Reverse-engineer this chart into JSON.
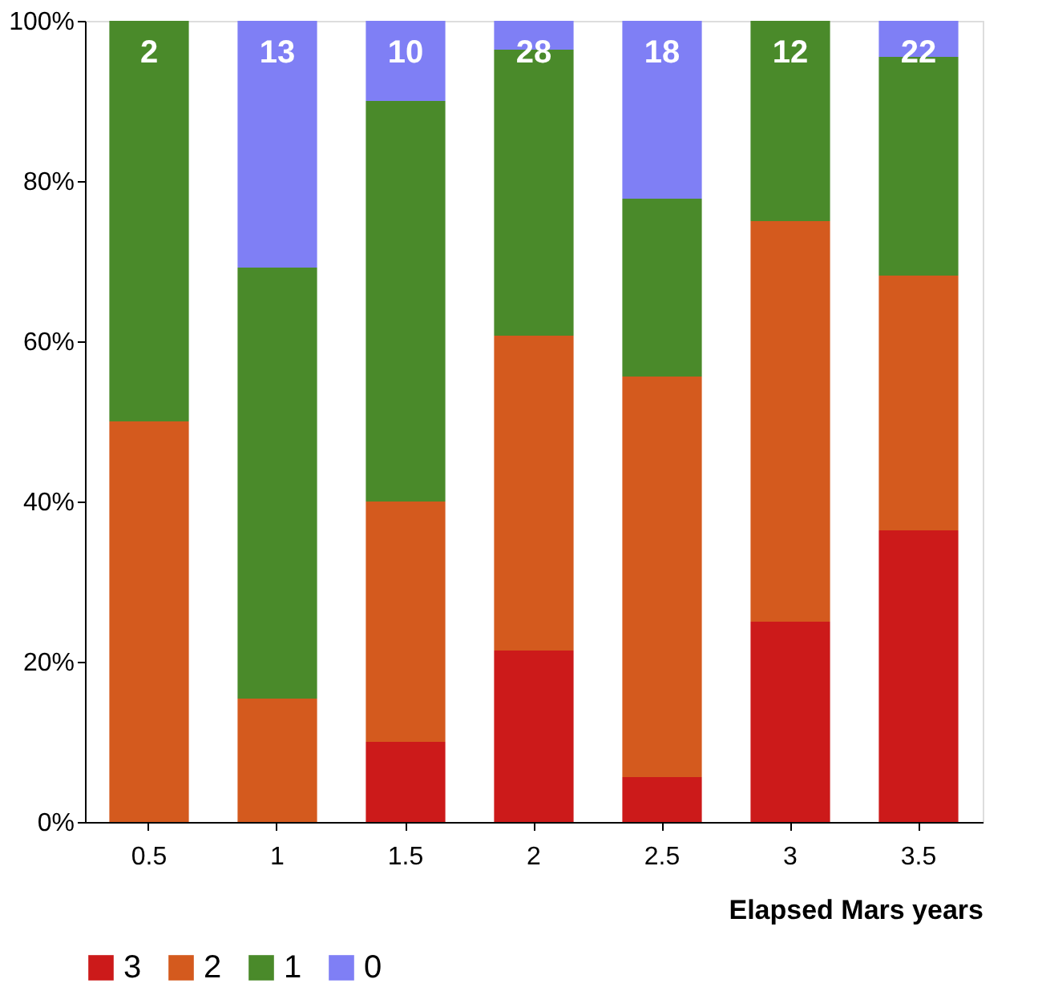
{
  "chart_data": {
    "type": "bar",
    "stacked": true,
    "xlabel": "Elapsed Mars years",
    "categories": [
      "0.5",
      "1",
      "1.5",
      "2",
      "2.5",
      "3",
      "3.5"
    ],
    "series": [
      {
        "name": "3",
        "color": "#cc1a1a",
        "values": [
          0,
          0,
          10,
          21.4,
          5.6,
          25,
          36.4
        ]
      },
      {
        "name": "2",
        "color": "#d45a1e",
        "values": [
          50,
          15.4,
          30,
          39.3,
          50,
          50,
          31.8
        ]
      },
      {
        "name": "1",
        "color": "#4a8a2a",
        "values": [
          50,
          53.8,
          50,
          35.7,
          22.2,
          25,
          27.3
        ]
      },
      {
        "name": "0",
        "color": "#7f7ff5",
        "values": [
          0,
          30.8,
          10,
          3.6,
          22.2,
          0,
          4.5
        ]
      }
    ],
    "annotations": [
      "2",
      "13",
      "10",
      "28",
      "18",
      "12",
      "22"
    ],
    "ylim": [
      0,
      100
    ],
    "yticks": [
      {
        "value": 0,
        "label": "0%"
      },
      {
        "value": 20,
        "label": "20%"
      },
      {
        "value": 40,
        "label": "40%"
      },
      {
        "value": 60,
        "label": "60%"
      },
      {
        "value": 80,
        "label": "80%"
      },
      {
        "value": 100,
        "label": "100%"
      }
    ],
    "grid": false,
    "legend": "bottom left"
  }
}
